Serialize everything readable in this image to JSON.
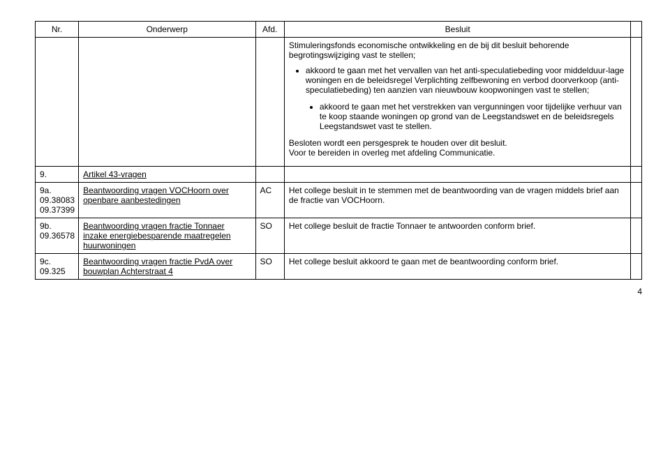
{
  "header": {
    "nr": "Nr.",
    "onderwerp": "Onderwerp",
    "afd": "Afd.",
    "besluit": "Besluit"
  },
  "row1": {
    "intro": "Stimuleringsfonds economische ontwikkeling en de bij dit besluit behorende begrotingswijziging vast te stellen;",
    "b1": "akkoord te gaan met het vervallen van het anti-speculatiebeding voor middelduur-lage woningen en de beleidsregel Verplichting zelfbewoning en verbod doorverkoop (anti-speculatiebeding) ten aanzien van nieuwbouw koopwoningen vast te stellen;",
    "b2": "akkoord te gaan met het verstrekken van vergunningen voor tijdelijke verhuur van te koop staande woningen op grond van de Leegstandswet en de beleidsregels Leegstandswet vast te stellen.",
    "para1": "Besloten wordt een persgesprek te houden over dit besluit.",
    "para2": "Voor te bereiden in overleg met afdeling Communicatie."
  },
  "row9": {
    "nr": "9.",
    "onderwerp": "Artikel 43-vragen"
  },
  "row9a": {
    "nr1": "9a.",
    "nr2": "09.38083",
    "nr3": "09.37399",
    "onderwerp": "Beantwoording vragen VOCHoorn over openbare aanbestedingen",
    "afd": "AC",
    "besluit": "Het college besluit in te stemmen met de beantwoording van de vragen middels brief aan de fractie van VOCHoorn."
  },
  "row9b": {
    "nr1": "9b.",
    "nr2": "09.36578",
    "onderwerp": "Beantwoording vragen fractie Tonnaer inzake energiebesparende maatregelen huurwoningen",
    "afd": "SO",
    "besluit": "Het college besluit de fractie Tonnaer te antwoorden conform brief."
  },
  "row9c": {
    "nr1": "9c.",
    "nr2": "09.325",
    "onderwerp": "Beantwoording vragen fractie PvdA over bouwplan Achterstraat 4",
    "afd": "SO",
    "besluit": "Het college besluit akkoord te gaan met de beantwoording conform brief."
  },
  "pageno": "4"
}
